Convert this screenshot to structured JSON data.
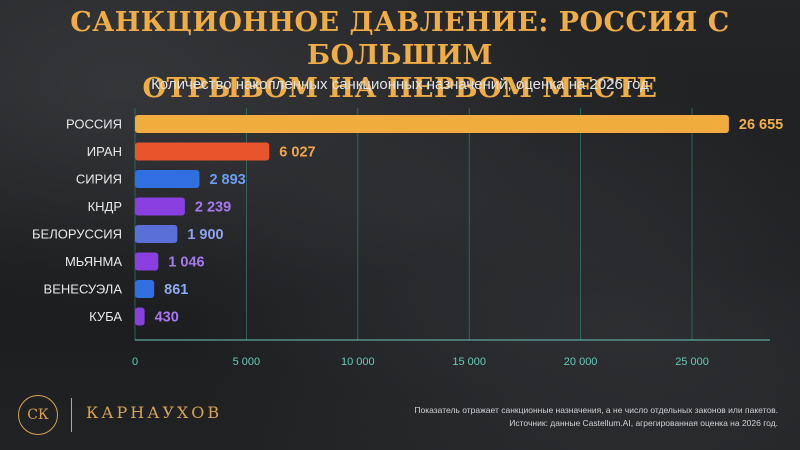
{
  "header": {
    "title_line1": "САНКЦИОННОЕ ДАВЛЕНИЕ: РОССИЯ С БОЛЬШИМ",
    "title_line2": "ОТРЫВОМ НА ПЕРВОМ МЕСТЕ",
    "subtitle": "Количество накопленных санкционных назначений, оценка на 2026 год"
  },
  "chart_data": {
    "type": "bar",
    "orientation": "horizontal",
    "title": "САНКЦИОННОЕ ДАВЛЕНИЕ: РОССИЯ С БОЛЬШИМ ОТРЫВОМ НА ПЕРВОМ МЕСТЕ",
    "subtitle": "Количество накопленных санкционных назначений, оценка на 2026 год",
    "categories": [
      "РОССИЯ",
      "ИРАН",
      "СИРИЯ",
      "КНДР",
      "БЕЛОРУССИЯ",
      "МЬЯНМА",
      "ВЕНЕСУЭЛА",
      "КУБА"
    ],
    "values": [
      26655,
      6027,
      2893,
      2239,
      1900,
      1046,
      861,
      430
    ],
    "value_labels": [
      "26 655",
      "6 027",
      "2 893",
      "2 239",
      "1 900",
      "1 046",
      "861",
      "430"
    ],
    "bar_colors": [
      "#f0ad3e",
      "#e8542c",
      "#2f6fe0",
      "#8a3fe0",
      "#5b6fd8",
      "#8a3fe0",
      "#2f6fe0",
      "#8a3fe0"
    ],
    "label_colors": [
      "#f3b04a",
      "#f3a54a",
      "#6f9ef0",
      "#a878f0",
      "#8fa0f0",
      "#a878f0",
      "#8fa8f0",
      "#a878f0"
    ],
    "xlim": [
      0,
      28500
    ],
    "x_ticks": [
      0,
      5000,
      10000,
      15000,
      20000,
      25000
    ],
    "x_tick_labels": [
      "0",
      "5 000",
      "10 000",
      "15 000",
      "20 000",
      "25 000"
    ],
    "xlabel": "",
    "ylabel": "",
    "grid": true,
    "grid_color": "#2f8a7a",
    "tick_color": "#67c9b8"
  },
  "footer": {
    "logo_text": "СК",
    "brand": "КАРНАУХОВ",
    "note_line1": "Показатель отражает санкционные назначения, а не число отдельных законов или пакетов.",
    "note_line2": "Источник: данные Castellum.AI, агрегированная оценка на 2026 год."
  }
}
